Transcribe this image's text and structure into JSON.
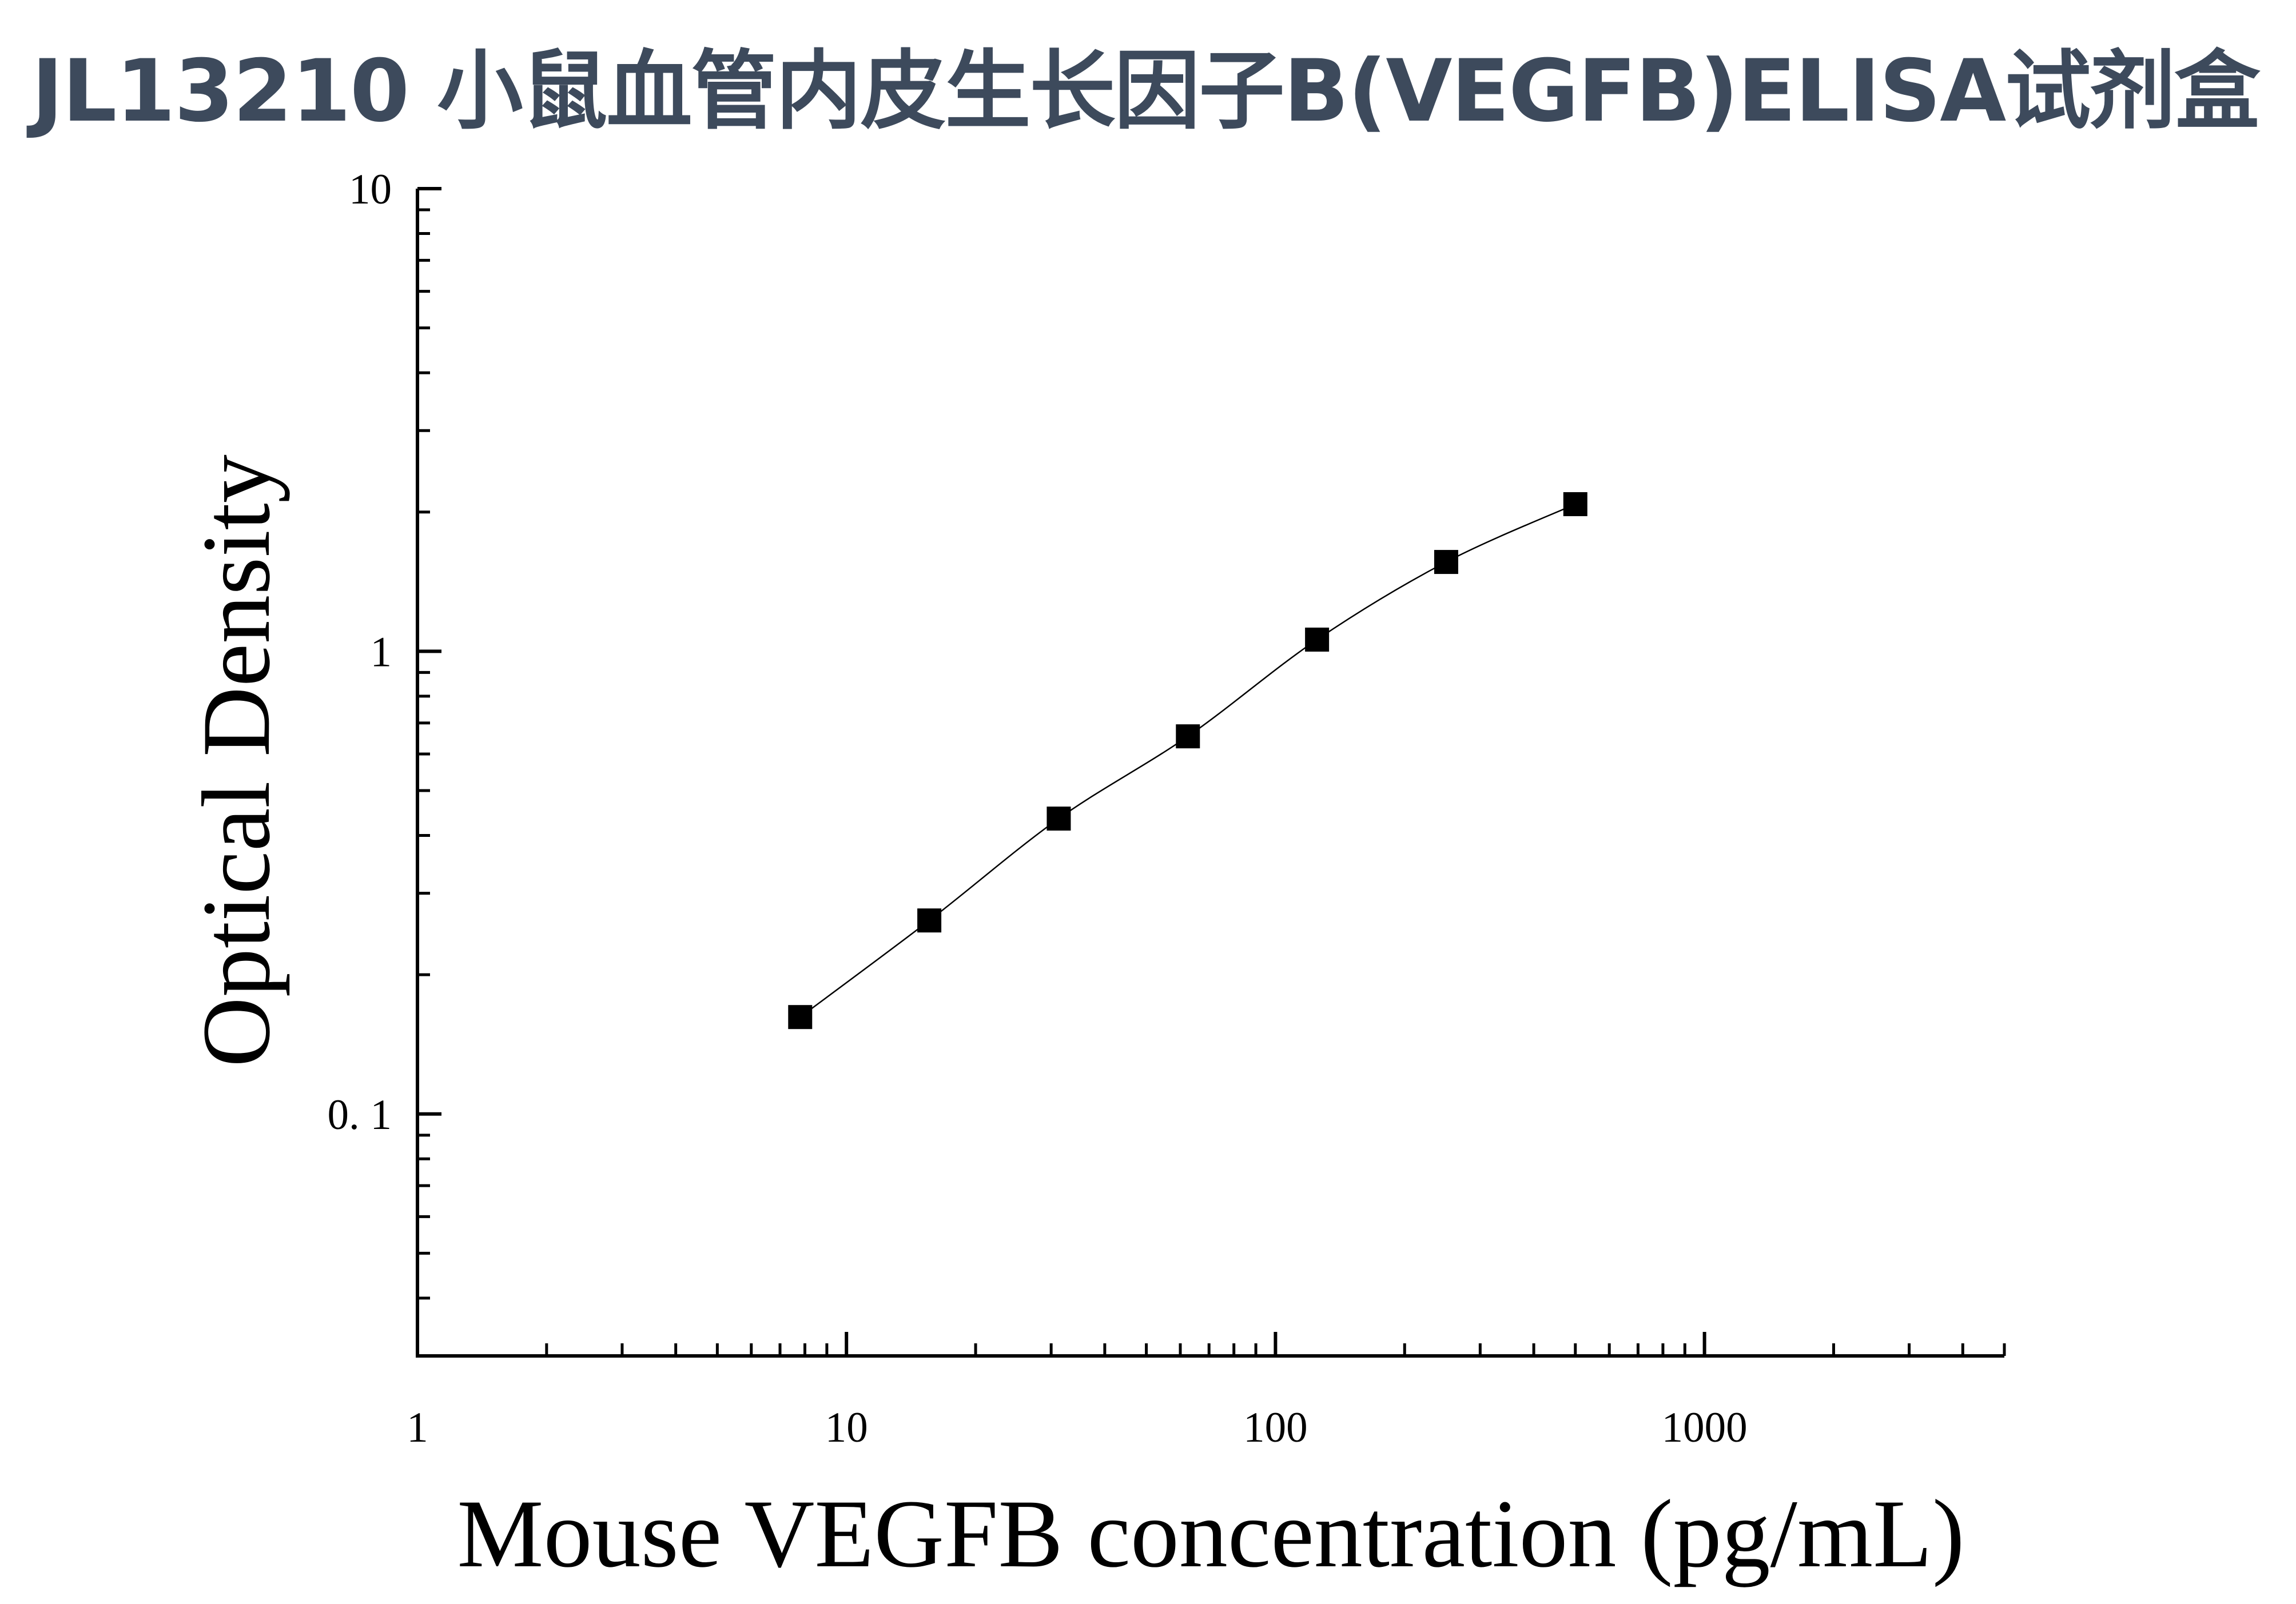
{
  "page": {
    "title": "JL13210 小鼠血管内皮生长因子B(VEGFB)ELISA试剂盒"
  },
  "chart_data": {
    "type": "scatter",
    "title": "",
    "xlabel": "Mouse VEGFB concentration (pg/mL)",
    "ylabel": "Optical Density",
    "x_scale": "log",
    "y_scale": "log",
    "xlim": [
      1,
      5000
    ],
    "ylim": [
      0.03,
      10
    ],
    "x_ticks": [
      {
        "value": 1,
        "label": "1"
      },
      {
        "value": 10,
        "label": "10"
      },
      {
        "value": 100,
        "label": "100"
      },
      {
        "value": 1000,
        "label": "1000"
      }
    ],
    "y_ticks": [
      {
        "value": 0.1,
        "label": "0. 1"
      },
      {
        "value": 1,
        "label": "1"
      },
      {
        "value": 10,
        "label": "10"
      }
    ],
    "grid": false,
    "legend": "none",
    "marker": "square",
    "marker_color": "#000000",
    "line_color": "#000000",
    "fit_curve": true,
    "series": [
      {
        "x": [
          7.8,
          15.6,
          31.25,
          62.5,
          125,
          250,
          500
        ],
        "y": [
          0.162,
          0.262,
          0.435,
          0.655,
          1.06,
          1.56,
          2.08
        ]
      }
    ]
  }
}
